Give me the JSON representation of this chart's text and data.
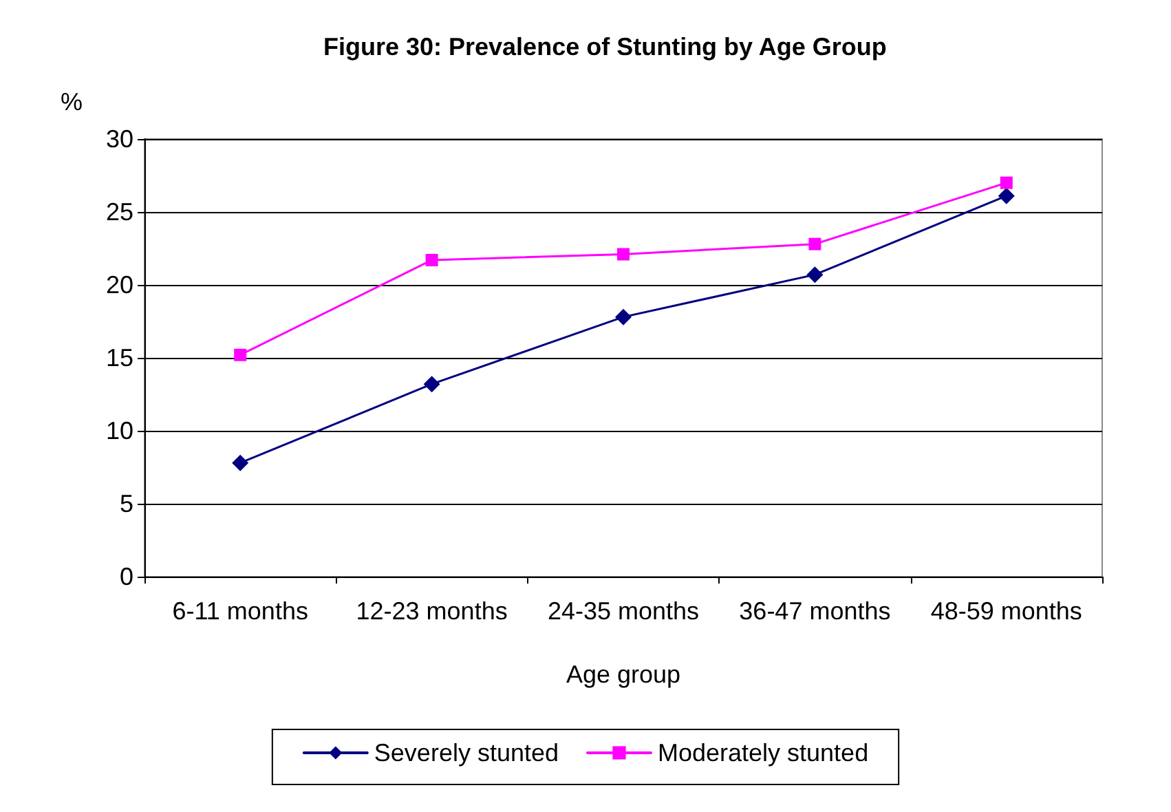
{
  "chart_data": {
    "type": "line",
    "title": "Figure 30: Prevalence of Stunting by Age Group",
    "xlabel": "Age group",
    "ylabel": "%",
    "categories": [
      "6-11 months",
      "12-23 months",
      "24-35 months",
      "36-47 months",
      "48-59 months"
    ],
    "series": [
      {
        "name": "Severely stunted",
        "color": "#000080",
        "marker": "diamond",
        "values": [
          7.8,
          13.2,
          17.8,
          20.7,
          26.1
        ]
      },
      {
        "name": "Moderately stunted",
        "color": "#ff00ff",
        "marker": "square",
        "values": [
          15.2,
          21.7,
          22.1,
          22.8,
          27.0
        ]
      }
    ],
    "ylim": [
      0,
      30
    ],
    "yticks": [
      0,
      5,
      10,
      15,
      20,
      25,
      30
    ],
    "grid": "y",
    "legend": "bottom",
    "line_style": "solid"
  }
}
